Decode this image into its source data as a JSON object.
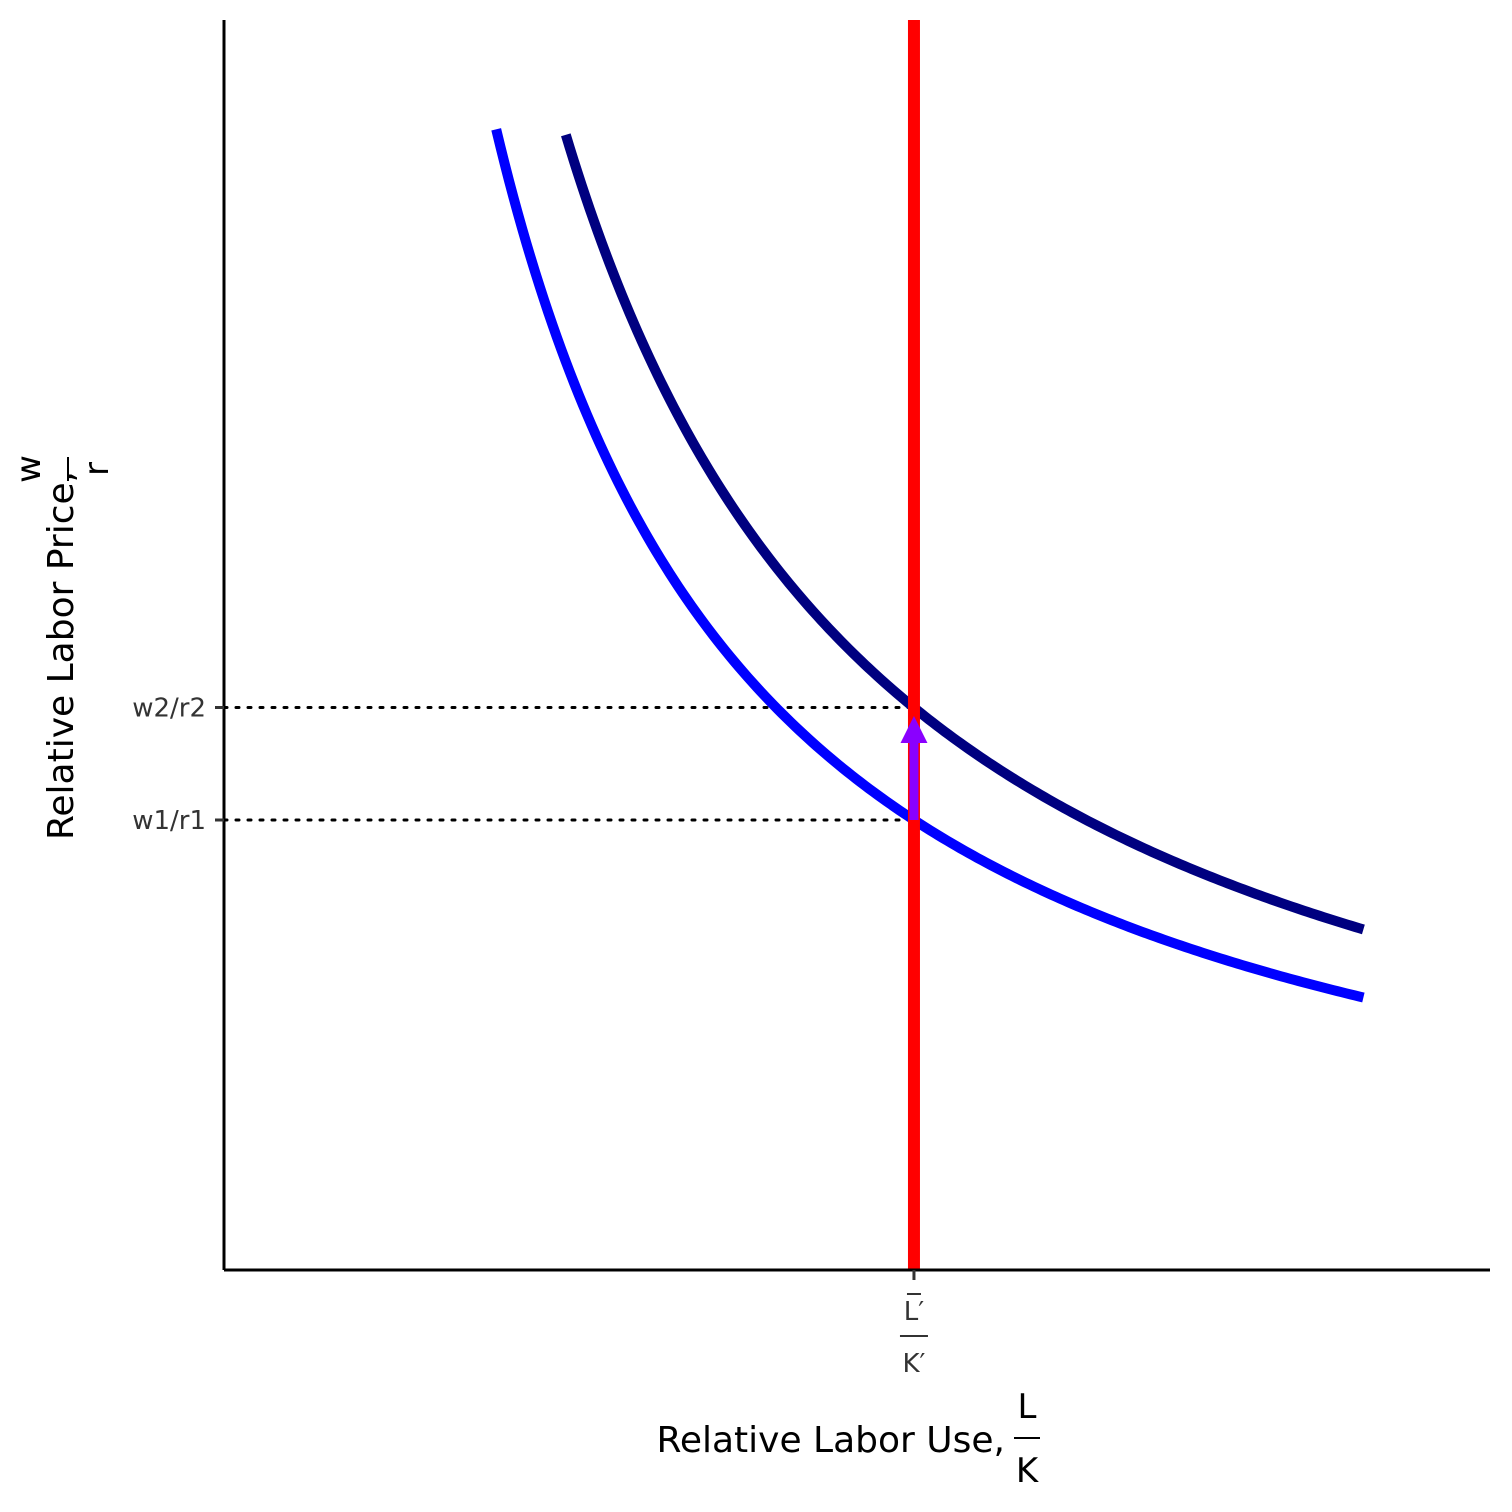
{
  "chart_data": {
    "type": "line",
    "title": "",
    "xlabel": {
      "text": "Relative Labor Use,",
      "numerator": "L",
      "denominator": "K"
    },
    "ylabel": {
      "text": "Relative Labor Price,",
      "numerator": "w",
      "denominator": "r"
    },
    "xlim": [
      0,
      10
    ],
    "ylim": [
      0,
      10
    ],
    "x_ticks": [
      {
        "value": 5.45,
        "numerator": "L′",
        "denominator": "K′"
      }
    ],
    "y_ticks": [
      {
        "value": 3.6,
        "label": "w1/r1"
      },
      {
        "value": 4.5,
        "label": "w2/r2"
      }
    ],
    "grid": false,
    "legend": "none",
    "series": [
      {
        "kind": "curve",
        "color": "#0000ff",
        "k": 19.62,
        "x": [
          2.15,
          2.5,
          3.0,
          3.5,
          4.0,
          4.5,
          5.0,
          5.45,
          6.0,
          6.5,
          7.0,
          7.5,
          8.0,
          8.5,
          9.0
        ],
        "y": [
          9.1,
          7.85,
          6.54,
          5.61,
          4.91,
          4.36,
          3.92,
          3.6,
          3.27,
          3.02,
          2.8,
          2.62,
          2.45,
          2.31,
          2.18
        ]
      },
      {
        "kind": "curve",
        "color": "#000080",
        "k": 24.52,
        "x": [
          2.7,
          3.0,
          3.5,
          4.0,
          4.5,
          5.0,
          5.45,
          6.0,
          6.5,
          7.0,
          7.5,
          8.0,
          8.5,
          9.0
        ],
        "y": [
          9.1,
          8.17,
          7.01,
          6.13,
          5.45,
          4.9,
          4.5,
          4.09,
          3.77,
          3.5,
          3.27,
          3.07,
          2.88,
          2.72
        ]
      },
      {
        "kind": "vertical",
        "color": "#ff0000",
        "x": 5.45
      }
    ],
    "arrow": {
      "color": "#8a00ff",
      "x": 5.45,
      "y_from": 3.6,
      "y_to": 4.5
    },
    "reference_lines": [
      {
        "y": 3.6,
        "x_to": 5.45,
        "style": "dotted"
      },
      {
        "y": 4.5,
        "x_to": 5.45,
        "style": "dotted"
      }
    ]
  }
}
